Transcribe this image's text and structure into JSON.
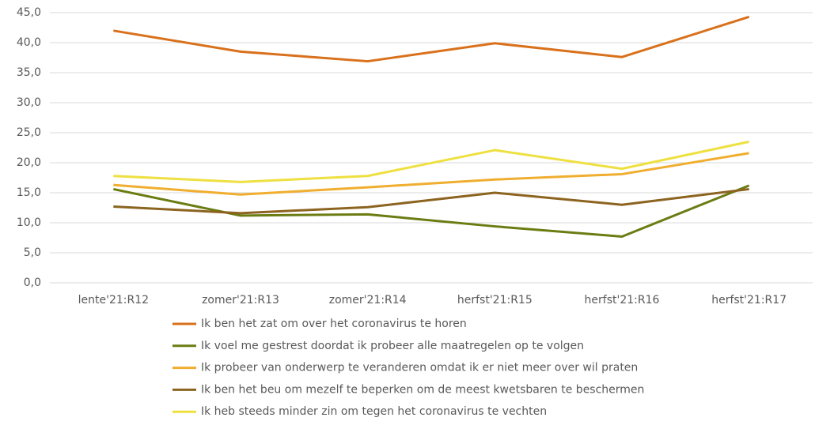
{
  "chart_data": {
    "type": "line",
    "categories": [
      "lente'21:R12",
      "zomer'21:R13",
      "zomer'21:R14",
      "herfst'21:R15",
      "herfst'21:R16",
      "herfst'21:R17"
    ],
    "series": [
      {
        "name": "Ik ben het zat om over het coronavirus te horen",
        "color": "#d9711c",
        "values": [
          42.0,
          38.5,
          36.9,
          39.9,
          37.6,
          44.3
        ]
      },
      {
        "name": "Ik voel me gestrest doordat ik probeer alle maatregelen op te volgen",
        "color": "#6b7c12",
        "values": [
          15.6,
          11.2,
          11.4,
          9.4,
          7.7,
          16.2
        ]
      },
      {
        "name": "Ik probeer van onderwerp te veranderen omdat ik er niet meer over wil praten",
        "color": "#f0ae30",
        "values": [
          16.3,
          14.7,
          15.9,
          17.2,
          18.1,
          21.6
        ]
      },
      {
        "name": "Ik ben het beu om mezelf te beperken om de meest kwetsbaren te beschermen",
        "color": "#8c6420",
        "values": [
          12.7,
          11.6,
          12.6,
          15.0,
          13.0,
          15.6
        ]
      },
      {
        "name": "Ik heb steeds minder zin om tegen het coronavirus te vechten",
        "color": "#eee040",
        "values": [
          17.8,
          16.8,
          17.8,
          22.1,
          19.0,
          23.5
        ]
      }
    ],
    "ylim": [
      0,
      45
    ],
    "yticks": [
      {
        "value": 0,
        "label": "0,0"
      },
      {
        "value": 5,
        "label": "5,0"
      },
      {
        "value": 10,
        "label": "10,0"
      },
      {
        "value": 15,
        "label": "15,0"
      },
      {
        "value": 20,
        "label": "20,0"
      },
      {
        "value": 25,
        "label": "25,0"
      },
      {
        "value": 30,
        "label": "30,0"
      },
      {
        "value": 35,
        "label": "35,0"
      },
      {
        "value": 40,
        "label": "40,0"
      },
      {
        "value": 45,
        "label": "45,0"
      }
    ],
    "grid": true
  }
}
